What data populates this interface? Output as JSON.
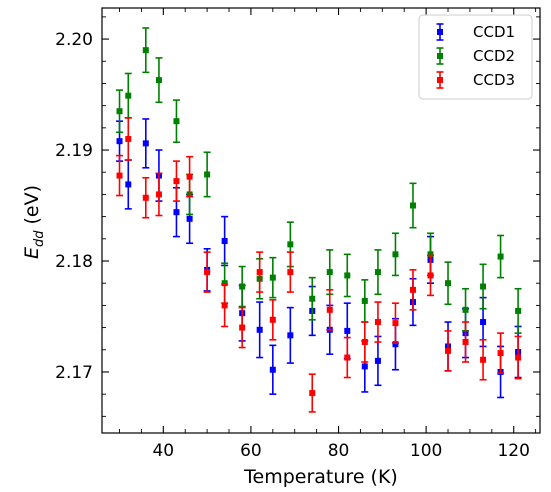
{
  "chart_data": {
    "type": "scatter",
    "title": "",
    "xlabel": "Temperature (K)",
    "ylabel": {
      "symbol": "E",
      "subscript": "dd",
      "unit": "(eV)"
    },
    "xlim": [
      26,
      126
    ],
    "ylim": [
      2.1645,
      2.2028
    ],
    "x_ticks": [
      40,
      60,
      80,
      100,
      120
    ],
    "y_ticks": [
      2.17,
      2.18,
      2.19,
      2.2
    ],
    "x_tick_labels": [
      "40",
      "60",
      "80",
      "100",
      "120"
    ],
    "y_tick_labels": [
      "2.17",
      "2.18",
      "2.19",
      "2.20"
    ],
    "grid": false,
    "legend_position": "top-right",
    "error_bars": true,
    "marker": "square",
    "series": [
      {
        "name": "CCD1",
        "color": "#0000ff",
        "points": [
          {
            "x": 30,
            "y": 2.1908,
            "err": 0.0018
          },
          {
            "x": 32,
            "y": 2.1869,
            "err": 0.0022
          },
          {
            "x": 36,
            "y": 2.1906,
            "err": 0.0022
          },
          {
            "x": 39,
            "y": 2.1877,
            "err": 0.0023
          },
          {
            "x": 43,
            "y": 2.1844,
            "err": 0.0022
          },
          {
            "x": 46,
            "y": 2.1838,
            "err": 0.0022
          },
          {
            "x": 50,
            "y": 2.1792,
            "err": 0.0019
          },
          {
            "x": 54,
            "y": 2.1818,
            "err": 0.0022
          },
          {
            "x": 58,
            "y": 2.1753,
            "err": 0.0025
          },
          {
            "x": 62,
            "y": 2.1738,
            "err": 0.0025
          },
          {
            "x": 65,
            "y": 2.1702,
            "err": 0.0022
          },
          {
            "x": 69,
            "y": 2.1733,
            "err": 0.0025
          },
          {
            "x": 74,
            "y": 2.1755,
            "err": 0.0022
          },
          {
            "x": 78,
            "y": 2.1738,
            "err": 0.0022
          },
          {
            "x": 82,
            "y": 2.1737,
            "err": 0.0025
          },
          {
            "x": 86,
            "y": 2.1705,
            "err": 0.0023
          },
          {
            "x": 89,
            "y": 2.171,
            "err": 0.0022
          },
          {
            "x": 93,
            "y": 2.1725,
            "err": 0.0023
          },
          {
            "x": 97,
            "y": 2.1763,
            "err": 0.0021
          },
          {
            "x": 101,
            "y": 2.1801,
            "err": 0.0021
          },
          {
            "x": 105,
            "y": 2.1723,
            "err": 0.0022
          },
          {
            "x": 109,
            "y": 2.1735,
            "err": 0.0022
          },
          {
            "x": 113,
            "y": 2.1745,
            "err": 0.0022
          },
          {
            "x": 117,
            "y": 2.17,
            "err": 0.0023
          },
          {
            "x": 121,
            "y": 2.1718,
            "err": 0.0023
          }
        ]
      },
      {
        "name": "CCD2",
        "color": "#008000",
        "points": [
          {
            "x": 30,
            "y": 2.1935,
            "err": 0.0019
          },
          {
            "x": 32,
            "y": 2.1949,
            "err": 0.002
          },
          {
            "x": 36,
            "y": 2.199,
            "err": 0.002
          },
          {
            "x": 39,
            "y": 2.1963,
            "err": 0.002
          },
          {
            "x": 43,
            "y": 2.1926,
            "err": 0.0019
          },
          {
            "x": 46,
            "y": 2.186,
            "err": 0.0018
          },
          {
            "x": 50,
            "y": 2.1878,
            "err": 0.002
          },
          {
            "x": 54,
            "y": 2.178,
            "err": 0.0018
          },
          {
            "x": 58,
            "y": 2.1777,
            "err": 0.0018
          },
          {
            "x": 62,
            "y": 2.1784,
            "err": 0.0018
          },
          {
            "x": 65,
            "y": 2.1785,
            "err": 0.0018
          },
          {
            "x": 69,
            "y": 2.1815,
            "err": 0.002
          },
          {
            "x": 74,
            "y": 2.1766,
            "err": 0.0019
          },
          {
            "x": 78,
            "y": 2.179,
            "err": 0.002
          },
          {
            "x": 82,
            "y": 2.1787,
            "err": 0.0019
          },
          {
            "x": 86,
            "y": 2.1764,
            "err": 0.0019
          },
          {
            "x": 89,
            "y": 2.179,
            "err": 0.002
          },
          {
            "x": 93,
            "y": 2.1806,
            "err": 0.0019
          },
          {
            "x": 97,
            "y": 2.185,
            "err": 0.002
          },
          {
            "x": 101,
            "y": 2.1806,
            "err": 0.0019
          },
          {
            "x": 105,
            "y": 2.178,
            "err": 0.0019
          },
          {
            "x": 109,
            "y": 2.1756,
            "err": 0.0019
          },
          {
            "x": 113,
            "y": 2.1777,
            "err": 0.002
          },
          {
            "x": 117,
            "y": 2.1804,
            "err": 0.0019
          },
          {
            "x": 121,
            "y": 2.1755,
            "err": 0.002
          }
        ]
      },
      {
        "name": "CCD3",
        "color": "#ff0000",
        "points": [
          {
            "x": 30,
            "y": 2.1877,
            "err": 0.0018
          },
          {
            "x": 32,
            "y": 2.191,
            "err": 0.0019
          },
          {
            "x": 36,
            "y": 2.1857,
            "err": 0.0018
          },
          {
            "x": 39,
            "y": 2.186,
            "err": 0.0019
          },
          {
            "x": 43,
            "y": 2.1872,
            "err": 0.0018
          },
          {
            "x": 46,
            "y": 2.1876,
            "err": 0.0018
          },
          {
            "x": 50,
            "y": 2.179,
            "err": 0.0018
          },
          {
            "x": 54,
            "y": 2.176,
            "err": 0.0019
          },
          {
            "x": 58,
            "y": 2.174,
            "err": 0.0018
          },
          {
            "x": 62,
            "y": 2.179,
            "err": 0.0018
          },
          {
            "x": 65,
            "y": 2.1747,
            "err": 0.0018
          },
          {
            "x": 69,
            "y": 2.179,
            "err": 0.0018
          },
          {
            "x": 74,
            "y": 2.1681,
            "err": 0.0017
          },
          {
            "x": 78,
            "y": 2.1756,
            "err": 0.0018
          },
          {
            "x": 82,
            "y": 2.1713,
            "err": 0.0018
          },
          {
            "x": 86,
            "y": 2.1727,
            "err": 0.0018
          },
          {
            "x": 89,
            "y": 2.1745,
            "err": 0.0018
          },
          {
            "x": 93,
            "y": 2.1744,
            "err": 0.0018
          },
          {
            "x": 97,
            "y": 2.1774,
            "err": 0.0018
          },
          {
            "x": 101,
            "y": 2.1787,
            "err": 0.0018
          },
          {
            "x": 105,
            "y": 2.1719,
            "err": 0.0018
          },
          {
            "x": 109,
            "y": 2.1727,
            "err": 0.0018
          },
          {
            "x": 113,
            "y": 2.1711,
            "err": 0.0018
          },
          {
            "x": 117,
            "y": 2.1717,
            "err": 0.0018
          },
          {
            "x": 121,
            "y": 2.1713,
            "err": 0.0019
          }
        ]
      }
    ]
  }
}
